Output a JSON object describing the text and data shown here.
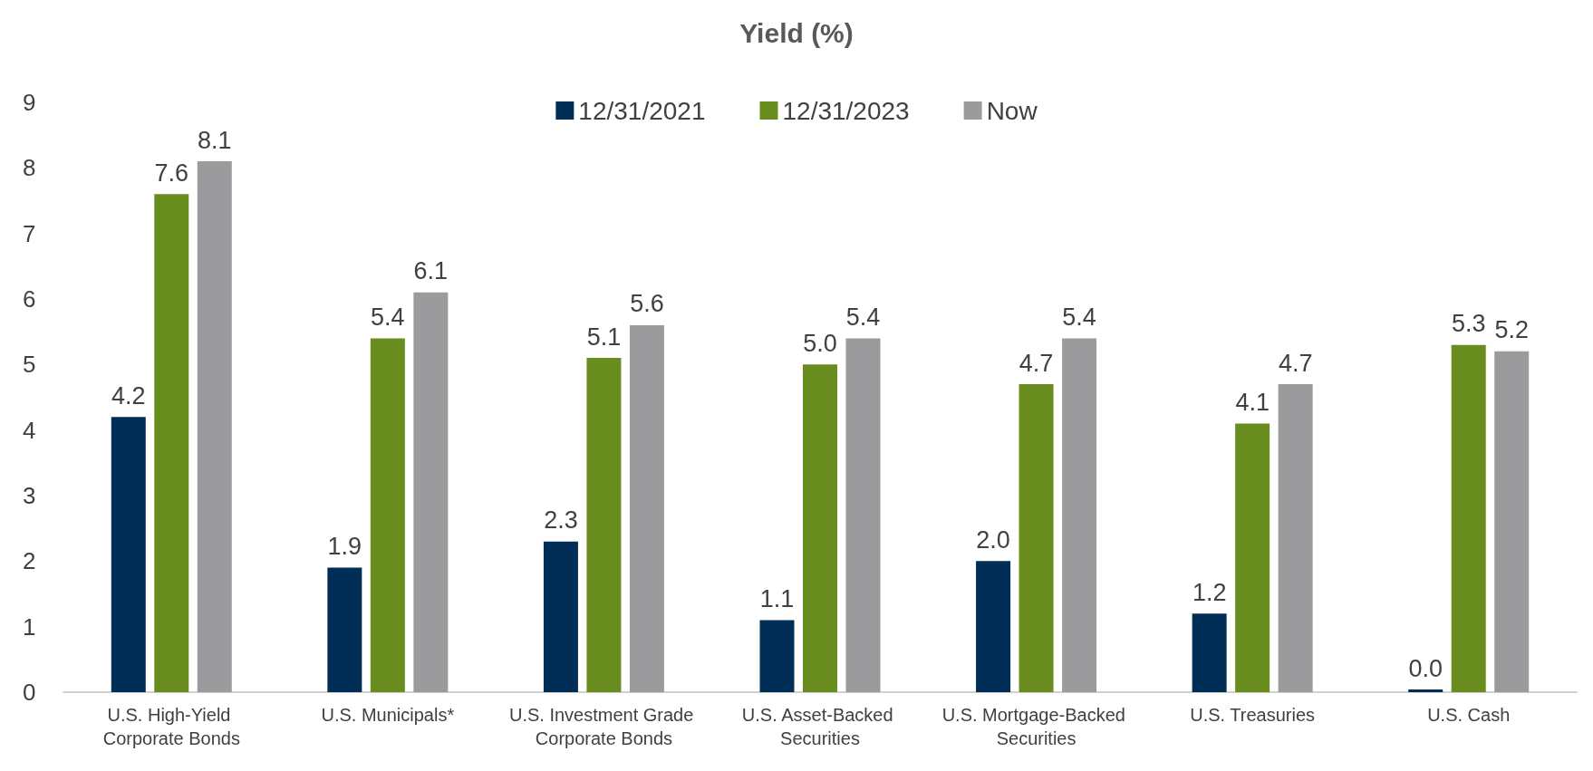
{
  "chart_data": {
    "type": "bar",
    "title": "Yield (%)",
    "categories": [
      "U.S. High-Yield Corporate Bonds",
      "U.S. Municipals*",
      "U.S. Investment Grade Corporate Bonds",
      "U.S. Asset-Backed Securities",
      "U.S. Mortgage-Backed Securities",
      "U.S. Treasuries",
      "U.S. Cash"
    ],
    "series": [
      {
        "name": "12/31/2021",
        "color": "#002e56",
        "values": [
          4.2,
          1.9,
          2.3,
          1.1,
          2.0,
          1.2,
          0.04
        ],
        "value_labels": [
          "4.2",
          "1.9",
          "2.3",
          "1.1",
          "2.0",
          "1.2",
          "0.0"
        ]
      },
      {
        "name": "12/31/2023",
        "color": "#688c1e",
        "values": [
          7.6,
          5.4,
          5.1,
          5.0,
          4.7,
          4.1,
          5.3
        ],
        "value_labels": [
          "7.6",
          "5.4",
          "5.1",
          "5.0",
          "4.7",
          "4.1",
          "5.3"
        ]
      },
      {
        "name": "Now",
        "color": "#9b9b9d",
        "values": [
          8.1,
          6.1,
          5.6,
          5.4,
          5.4,
          4.7,
          5.2
        ],
        "value_labels": [
          "8.1",
          "6.1",
          "5.6",
          "5.4",
          "5.4",
          "4.7",
          "5.2"
        ]
      }
    ],
    "ylim": [
      0,
      9
    ],
    "yticks": [
      0,
      1,
      2,
      3,
      4,
      5,
      6,
      7,
      8,
      9
    ],
    "grid": false,
    "legend": "top"
  }
}
